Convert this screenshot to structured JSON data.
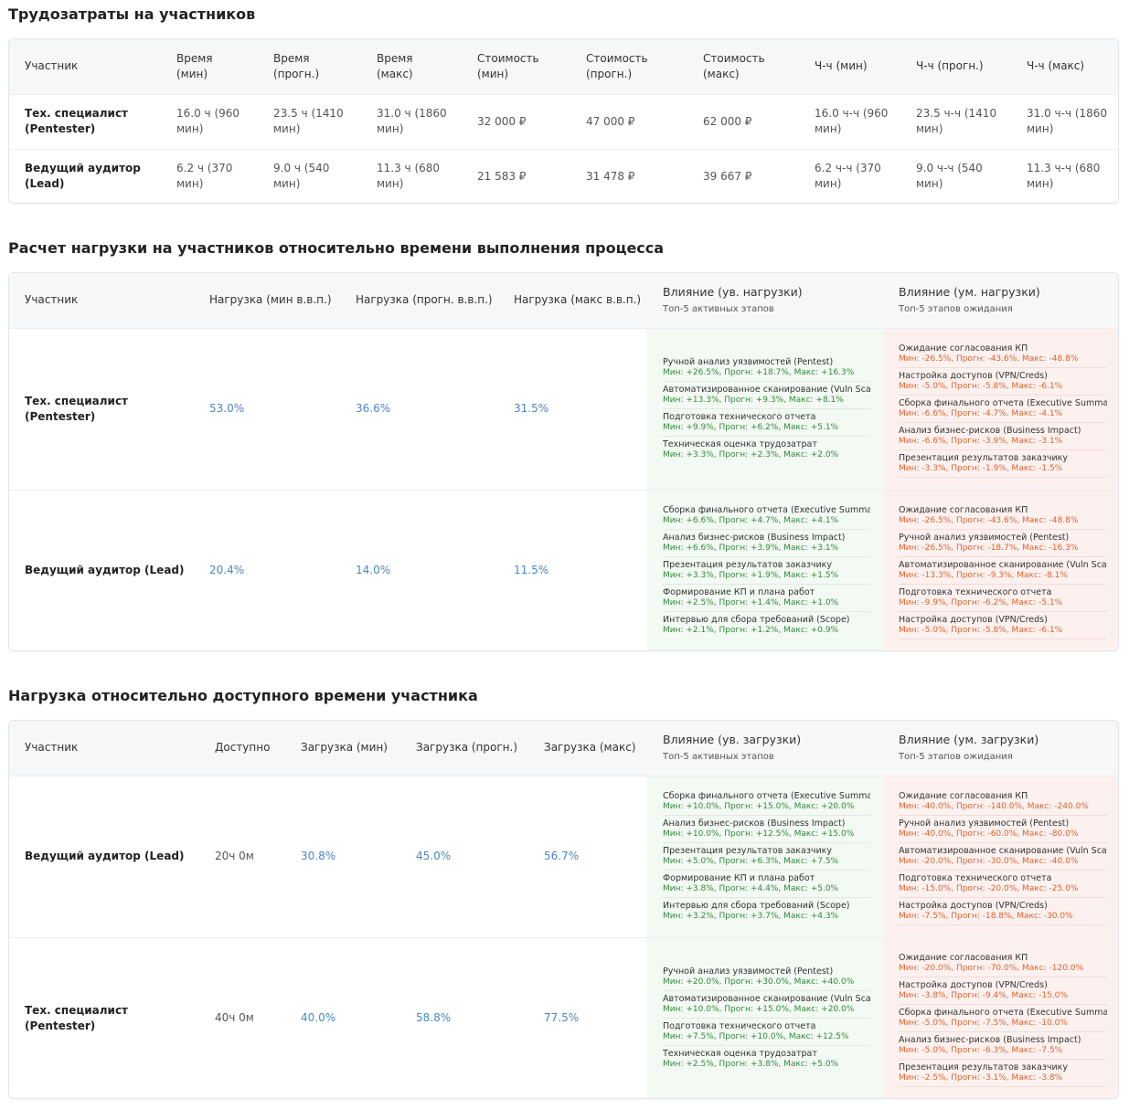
{
  "section1": {
    "title": "Трудозатраты на участников",
    "headers": [
      {
        "l1": "Участник",
        "l2": ""
      },
      {
        "l1": "Время",
        "l2": "(мин)"
      },
      {
        "l1": "Время",
        "l2": "(прогн.)"
      },
      {
        "l1": "Время",
        "l2": "(макс)"
      },
      {
        "l1": "Стоимость",
        "l2": "(мин)"
      },
      {
        "l1": "Стоимость",
        "l2": "(прогн.)"
      },
      {
        "l1": "Стоимость",
        "l2": "(макс)"
      },
      {
        "l1": "Ч-ч (мин)",
        "l2": ""
      },
      {
        "l1": "Ч-ч (прогн.)",
        "l2": ""
      },
      {
        "l1": "Ч-ч (макс)",
        "l2": ""
      }
    ],
    "rows": [
      {
        "name1": "Тех. специалист",
        "name2": "(Pentester)",
        "cells": [
          [
            "16.0 ч (960",
            "мин)"
          ],
          [
            "23.5 ч (1410",
            "мин)"
          ],
          [
            "31.0 ч (1860",
            "мин)"
          ],
          [
            "32 000 ₽",
            ""
          ],
          [
            "47 000 ₽",
            ""
          ],
          [
            "62 000 ₽",
            ""
          ],
          [
            "16.0 ч-ч (960",
            "мин)"
          ],
          [
            "23.5 ч-ч (1410",
            "мин)"
          ],
          [
            "31.0 ч-ч (1860",
            "мин)"
          ]
        ]
      },
      {
        "name1": "Ведущий аудитор",
        "name2": "(Lead)",
        "cells": [
          [
            "6.2 ч (370",
            "мин)"
          ],
          [
            "9.0 ч (540",
            "мин)"
          ],
          [
            "11.3 ч (680",
            "мин)"
          ],
          [
            "21 583 ₽",
            ""
          ],
          [
            "31 478 ₽",
            ""
          ],
          [
            "39 667 ₽",
            ""
          ],
          [
            "6.2 ч-ч (370",
            "мин)"
          ],
          [
            "9.0 ч-ч (540",
            "мин)"
          ],
          [
            "11.3 ч-ч (680",
            "мин)"
          ]
        ]
      }
    ]
  },
  "section2": {
    "title": "Расчет нагрузки на участников относительно времени выполнения процесса",
    "headers": [
      "Участник",
      "Нагрузка (мин в.в.п.)",
      "Нагрузка (прогн. в.в.п.)",
      "Нагрузка (макс в.в.п.)"
    ],
    "inc_header": "Влияние (ув. нагрузки)",
    "inc_sub": "Топ-5 активных этапов",
    "dec_header": "Влияние (ум. нагрузки)",
    "dec_sub": "Топ-5 этапов ожидания",
    "rows": [
      {
        "name": "Тех. специалист (Pentester)",
        "vals": [
          "53.0%",
          "36.6%",
          "31.5%"
        ],
        "inc": [
          {
            "n": "Ручной анализ уязвимостей (Pentest)",
            "v": "Мин: +26.5%, Прогн: +18.7%, Макс: +16.3%"
          },
          {
            "n": "Автоматизированное сканирование (Vuln Scan)",
            "v": "Мин: +13.3%, Прогн: +9.3%, Макс: +8.1%"
          },
          {
            "n": "Подготовка технического отчета",
            "v": "Мин: +9.9%, Прогн: +6.2%, Макс: +5.1%"
          },
          {
            "n": "Техническая оценка трудозатрат",
            "v": "Мин: +3.3%, Прогн: +2.3%, Макс: +2.0%"
          }
        ],
        "dec": [
          {
            "n": "Ожидание согласования КП",
            "v": "Мин: -26.5%, Прогн: -43.6%, Макс: -48.8%"
          },
          {
            "n": "Настройка доступов (VPN/Creds)",
            "v": "Мин: -5.0%, Прогн: -5.8%, Макс: -6.1%"
          },
          {
            "n": "Сборка финального отчета (Executive Summary)",
            "v": "Мин: -6.6%, Прогн: -4.7%, Макс: -4.1%"
          },
          {
            "n": "Анализ бизнес-рисков (Business Impact)",
            "v": "Мин: -6.6%, Прогн: -3.9%, Макс: -3.1%"
          },
          {
            "n": "Презентация результатов заказчику",
            "v": "Мин: -3.3%, Прогн: -1.9%, Макс: -1.5%"
          }
        ]
      },
      {
        "name": "Ведущий аудитор (Lead)",
        "vals": [
          "20.4%",
          "14.0%",
          "11.5%"
        ],
        "inc": [
          {
            "n": "Сборка финального отчета (Executive Summary)",
            "v": "Мин: +6.6%, Прогн: +4.7%, Макс: +4.1%"
          },
          {
            "n": "Анализ бизнес-рисков (Business Impact)",
            "v": "Мин: +6.6%, Прогн: +3.9%, Макс: +3.1%"
          },
          {
            "n": "Презентация результатов заказчику",
            "v": "Мин: +3.3%, Прогн: +1.9%, Макс: +1.5%"
          },
          {
            "n": "Формирование КП и плана работ",
            "v": "Мин: +2.5%, Прогн: +1.4%, Макс: +1.0%"
          },
          {
            "n": "Интервью для сбора требований (Scope)",
            "v": "Мин: +2.1%, Прогн: +1.2%, Макс: +0.9%"
          }
        ],
        "dec": [
          {
            "n": "Ожидание согласования КП",
            "v": "Мин: -26.5%, Прогн: -43.6%, Макс: -48.8%"
          },
          {
            "n": "Ручной анализ уязвимостей (Pentest)",
            "v": "Мин: -26.5%, Прогн: -18.7%, Макс: -16.3%"
          },
          {
            "n": "Автоматизированное сканирование (Vuln Scan)",
            "v": "Мин: -13.3%, Прогн: -9.3%, Макс: -8.1%"
          },
          {
            "n": "Подготовка технического отчета",
            "v": "Мин: -9.9%, Прогн: -6.2%, Макс: -5.1%"
          },
          {
            "n": "Настройка доступов (VPN/Creds)",
            "v": "Мин: -5.0%, Прогн: -5.8%, Макс: -6.1%"
          }
        ]
      }
    ]
  },
  "section3": {
    "title": "Нагрузка относительно доступного времени участника",
    "headers": [
      "Участник",
      "Доступно",
      "Загрузка (мин)",
      "Загрузка (прогн.)",
      "Загрузка (макс)"
    ],
    "inc_header": "Влияние (ув. загрузки)",
    "inc_sub": "Топ-5 активных этапов",
    "dec_header": "Влияние (ум. загрузки)",
    "dec_sub": "Топ-5 этапов ожидания",
    "rows": [
      {
        "name": "Ведущий аудитор (Lead)",
        "avail": "20ч 0м",
        "vals": [
          "30.8%",
          "45.0%",
          "56.7%"
        ],
        "inc": [
          {
            "n": "Сборка финального отчета (Executive Summary)",
            "v": "Мин: +10.0%, Прогн: +15.0%, Макс: +20.0%"
          },
          {
            "n": "Анализ бизнес-рисков (Business Impact)",
            "v": "Мин: +10.0%, Прогн: +12.5%, Макс: +15.0%"
          },
          {
            "n": "Презентация результатов заказчику",
            "v": "Мин: +5.0%, Прогн: +6.3%, Макс: +7.5%"
          },
          {
            "n": "Формирование КП и плана работ",
            "v": "Мин: +3.8%, Прогн: +4.4%, Макс: +5.0%"
          },
          {
            "n": "Интервью для сбора требований (Scope)",
            "v": "Мин: +3.2%, Прогн: +3.7%, Макс: +4.3%"
          }
        ],
        "dec": [
          {
            "n": "Ожидание согласования КП",
            "v": "Мин: -40.0%, Прогн: -140.0%, Макс: -240.0%"
          },
          {
            "n": "Ручной анализ уязвимостей (Pentest)",
            "v": "Мин: -40.0%, Прогн: -60.0%, Макс: -80.0%"
          },
          {
            "n": "Автоматизированное сканирование (Vuln Scan)",
            "v": "Мин: -20.0%, Прогн: -30.0%, Макс: -40.0%"
          },
          {
            "n": "Подготовка технического отчета",
            "v": "Мин: -15.0%, Прогн: -20.0%, Макс: -25.0%"
          },
          {
            "n": "Настройка доступов (VPN/Creds)",
            "v": "Мин: -7.5%, Прогн: -18.8%, Макс: -30.0%"
          }
        ]
      },
      {
        "name": "Тех. специалист (Pentester)",
        "avail": "40ч 0м",
        "vals": [
          "40.0%",
          "58.8%",
          "77.5%"
        ],
        "inc": [
          {
            "n": "Ручной анализ уязвимостей (Pentest)",
            "v": "Мин: +20.0%, Прогн: +30.0%, Макс: +40.0%"
          },
          {
            "n": "Автоматизированное сканирование (Vuln Scan)",
            "v": "Мин: +10.0%, Прогн: +15.0%, Макс: +20.0%"
          },
          {
            "n": "Подготовка технического отчета",
            "v": "Мин: +7.5%, Прогн: +10.0%, Макс: +12.5%"
          },
          {
            "n": "Техническая оценка трудозатрат",
            "v": "Мин: +2.5%, Прогн: +3.8%, Макс: +5.0%"
          }
        ],
        "dec": [
          {
            "n": "Ожидание согласования КП",
            "v": "Мин: -20.0%, Прогн: -70.0%, Макс: -120.0%"
          },
          {
            "n": "Настройка доступов (VPN/Creds)",
            "v": "Мин: -3.8%, Прогн: -9.4%, Макс: -15.0%"
          },
          {
            "n": "Сборка финального отчета (Executive Summary)",
            "v": "Мин: -5.0%, Прогн: -7.5%, Макс: -10.0%"
          },
          {
            "n": "Анализ бизнес-рисков (Business Impact)",
            "v": "Мин: -5.0%, Прогн: -6.3%, Макс: -7.5%"
          },
          {
            "n": "Презентация результатов заказчику",
            "v": "Мин: -2.5%, Прогн: -3.1%, Макс: -3.8%"
          }
        ]
      }
    ]
  },
  "colors": {
    "accent_pct": "#4a86c5",
    "positive": "#2e8b3a",
    "negative": "#e0622c",
    "inc_bg": "#f3f9f3",
    "dec_bg": "#fdf1ef"
  }
}
